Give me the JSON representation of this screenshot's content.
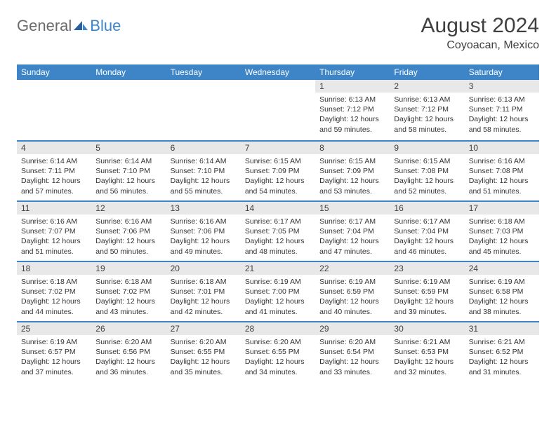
{
  "brand": {
    "part1": "General",
    "part2": "Blue"
  },
  "title": "August 2024",
  "location": "Coyoacan, Mexico",
  "colors": {
    "header_bg": "#3d85c6",
    "daynum_bg": "#e8e8e8",
    "text": "#404040",
    "body_text": "#333333"
  },
  "weekdays": [
    "Sunday",
    "Monday",
    "Tuesday",
    "Wednesday",
    "Thursday",
    "Friday",
    "Saturday"
  ],
  "weeks": [
    [
      null,
      null,
      null,
      null,
      {
        "n": "1",
        "sr": "6:13 AM",
        "ss": "7:12 PM",
        "dl": "12 hours and 59 minutes."
      },
      {
        "n": "2",
        "sr": "6:13 AM",
        "ss": "7:12 PM",
        "dl": "12 hours and 58 minutes."
      },
      {
        "n": "3",
        "sr": "6:13 AM",
        "ss": "7:11 PM",
        "dl": "12 hours and 58 minutes."
      }
    ],
    [
      {
        "n": "4",
        "sr": "6:14 AM",
        "ss": "7:11 PM",
        "dl": "12 hours and 57 minutes."
      },
      {
        "n": "5",
        "sr": "6:14 AM",
        "ss": "7:10 PM",
        "dl": "12 hours and 56 minutes."
      },
      {
        "n": "6",
        "sr": "6:14 AM",
        "ss": "7:10 PM",
        "dl": "12 hours and 55 minutes."
      },
      {
        "n": "7",
        "sr": "6:15 AM",
        "ss": "7:09 PM",
        "dl": "12 hours and 54 minutes."
      },
      {
        "n": "8",
        "sr": "6:15 AM",
        "ss": "7:09 PM",
        "dl": "12 hours and 53 minutes."
      },
      {
        "n": "9",
        "sr": "6:15 AM",
        "ss": "7:08 PM",
        "dl": "12 hours and 52 minutes."
      },
      {
        "n": "10",
        "sr": "6:16 AM",
        "ss": "7:08 PM",
        "dl": "12 hours and 51 minutes."
      }
    ],
    [
      {
        "n": "11",
        "sr": "6:16 AM",
        "ss": "7:07 PM",
        "dl": "12 hours and 51 minutes."
      },
      {
        "n": "12",
        "sr": "6:16 AM",
        "ss": "7:06 PM",
        "dl": "12 hours and 50 minutes."
      },
      {
        "n": "13",
        "sr": "6:16 AM",
        "ss": "7:06 PM",
        "dl": "12 hours and 49 minutes."
      },
      {
        "n": "14",
        "sr": "6:17 AM",
        "ss": "7:05 PM",
        "dl": "12 hours and 48 minutes."
      },
      {
        "n": "15",
        "sr": "6:17 AM",
        "ss": "7:04 PM",
        "dl": "12 hours and 47 minutes."
      },
      {
        "n": "16",
        "sr": "6:17 AM",
        "ss": "7:04 PM",
        "dl": "12 hours and 46 minutes."
      },
      {
        "n": "17",
        "sr": "6:18 AM",
        "ss": "7:03 PM",
        "dl": "12 hours and 45 minutes."
      }
    ],
    [
      {
        "n": "18",
        "sr": "6:18 AM",
        "ss": "7:02 PM",
        "dl": "12 hours and 44 minutes."
      },
      {
        "n": "19",
        "sr": "6:18 AM",
        "ss": "7:02 PM",
        "dl": "12 hours and 43 minutes."
      },
      {
        "n": "20",
        "sr": "6:18 AM",
        "ss": "7:01 PM",
        "dl": "12 hours and 42 minutes."
      },
      {
        "n": "21",
        "sr": "6:19 AM",
        "ss": "7:00 PM",
        "dl": "12 hours and 41 minutes."
      },
      {
        "n": "22",
        "sr": "6:19 AM",
        "ss": "6:59 PM",
        "dl": "12 hours and 40 minutes."
      },
      {
        "n": "23",
        "sr": "6:19 AM",
        "ss": "6:59 PM",
        "dl": "12 hours and 39 minutes."
      },
      {
        "n": "24",
        "sr": "6:19 AM",
        "ss": "6:58 PM",
        "dl": "12 hours and 38 minutes."
      }
    ],
    [
      {
        "n": "25",
        "sr": "6:19 AM",
        "ss": "6:57 PM",
        "dl": "12 hours and 37 minutes."
      },
      {
        "n": "26",
        "sr": "6:20 AM",
        "ss": "6:56 PM",
        "dl": "12 hours and 36 minutes."
      },
      {
        "n": "27",
        "sr": "6:20 AM",
        "ss": "6:55 PM",
        "dl": "12 hours and 35 minutes."
      },
      {
        "n": "28",
        "sr": "6:20 AM",
        "ss": "6:55 PM",
        "dl": "12 hours and 34 minutes."
      },
      {
        "n": "29",
        "sr": "6:20 AM",
        "ss": "6:54 PM",
        "dl": "12 hours and 33 minutes."
      },
      {
        "n": "30",
        "sr": "6:21 AM",
        "ss": "6:53 PM",
        "dl": "12 hours and 32 minutes."
      },
      {
        "n": "31",
        "sr": "6:21 AM",
        "ss": "6:52 PM",
        "dl": "12 hours and 31 minutes."
      }
    ]
  ],
  "labels": {
    "sunrise": "Sunrise:",
    "sunset": "Sunset:",
    "daylight": "Daylight:"
  }
}
